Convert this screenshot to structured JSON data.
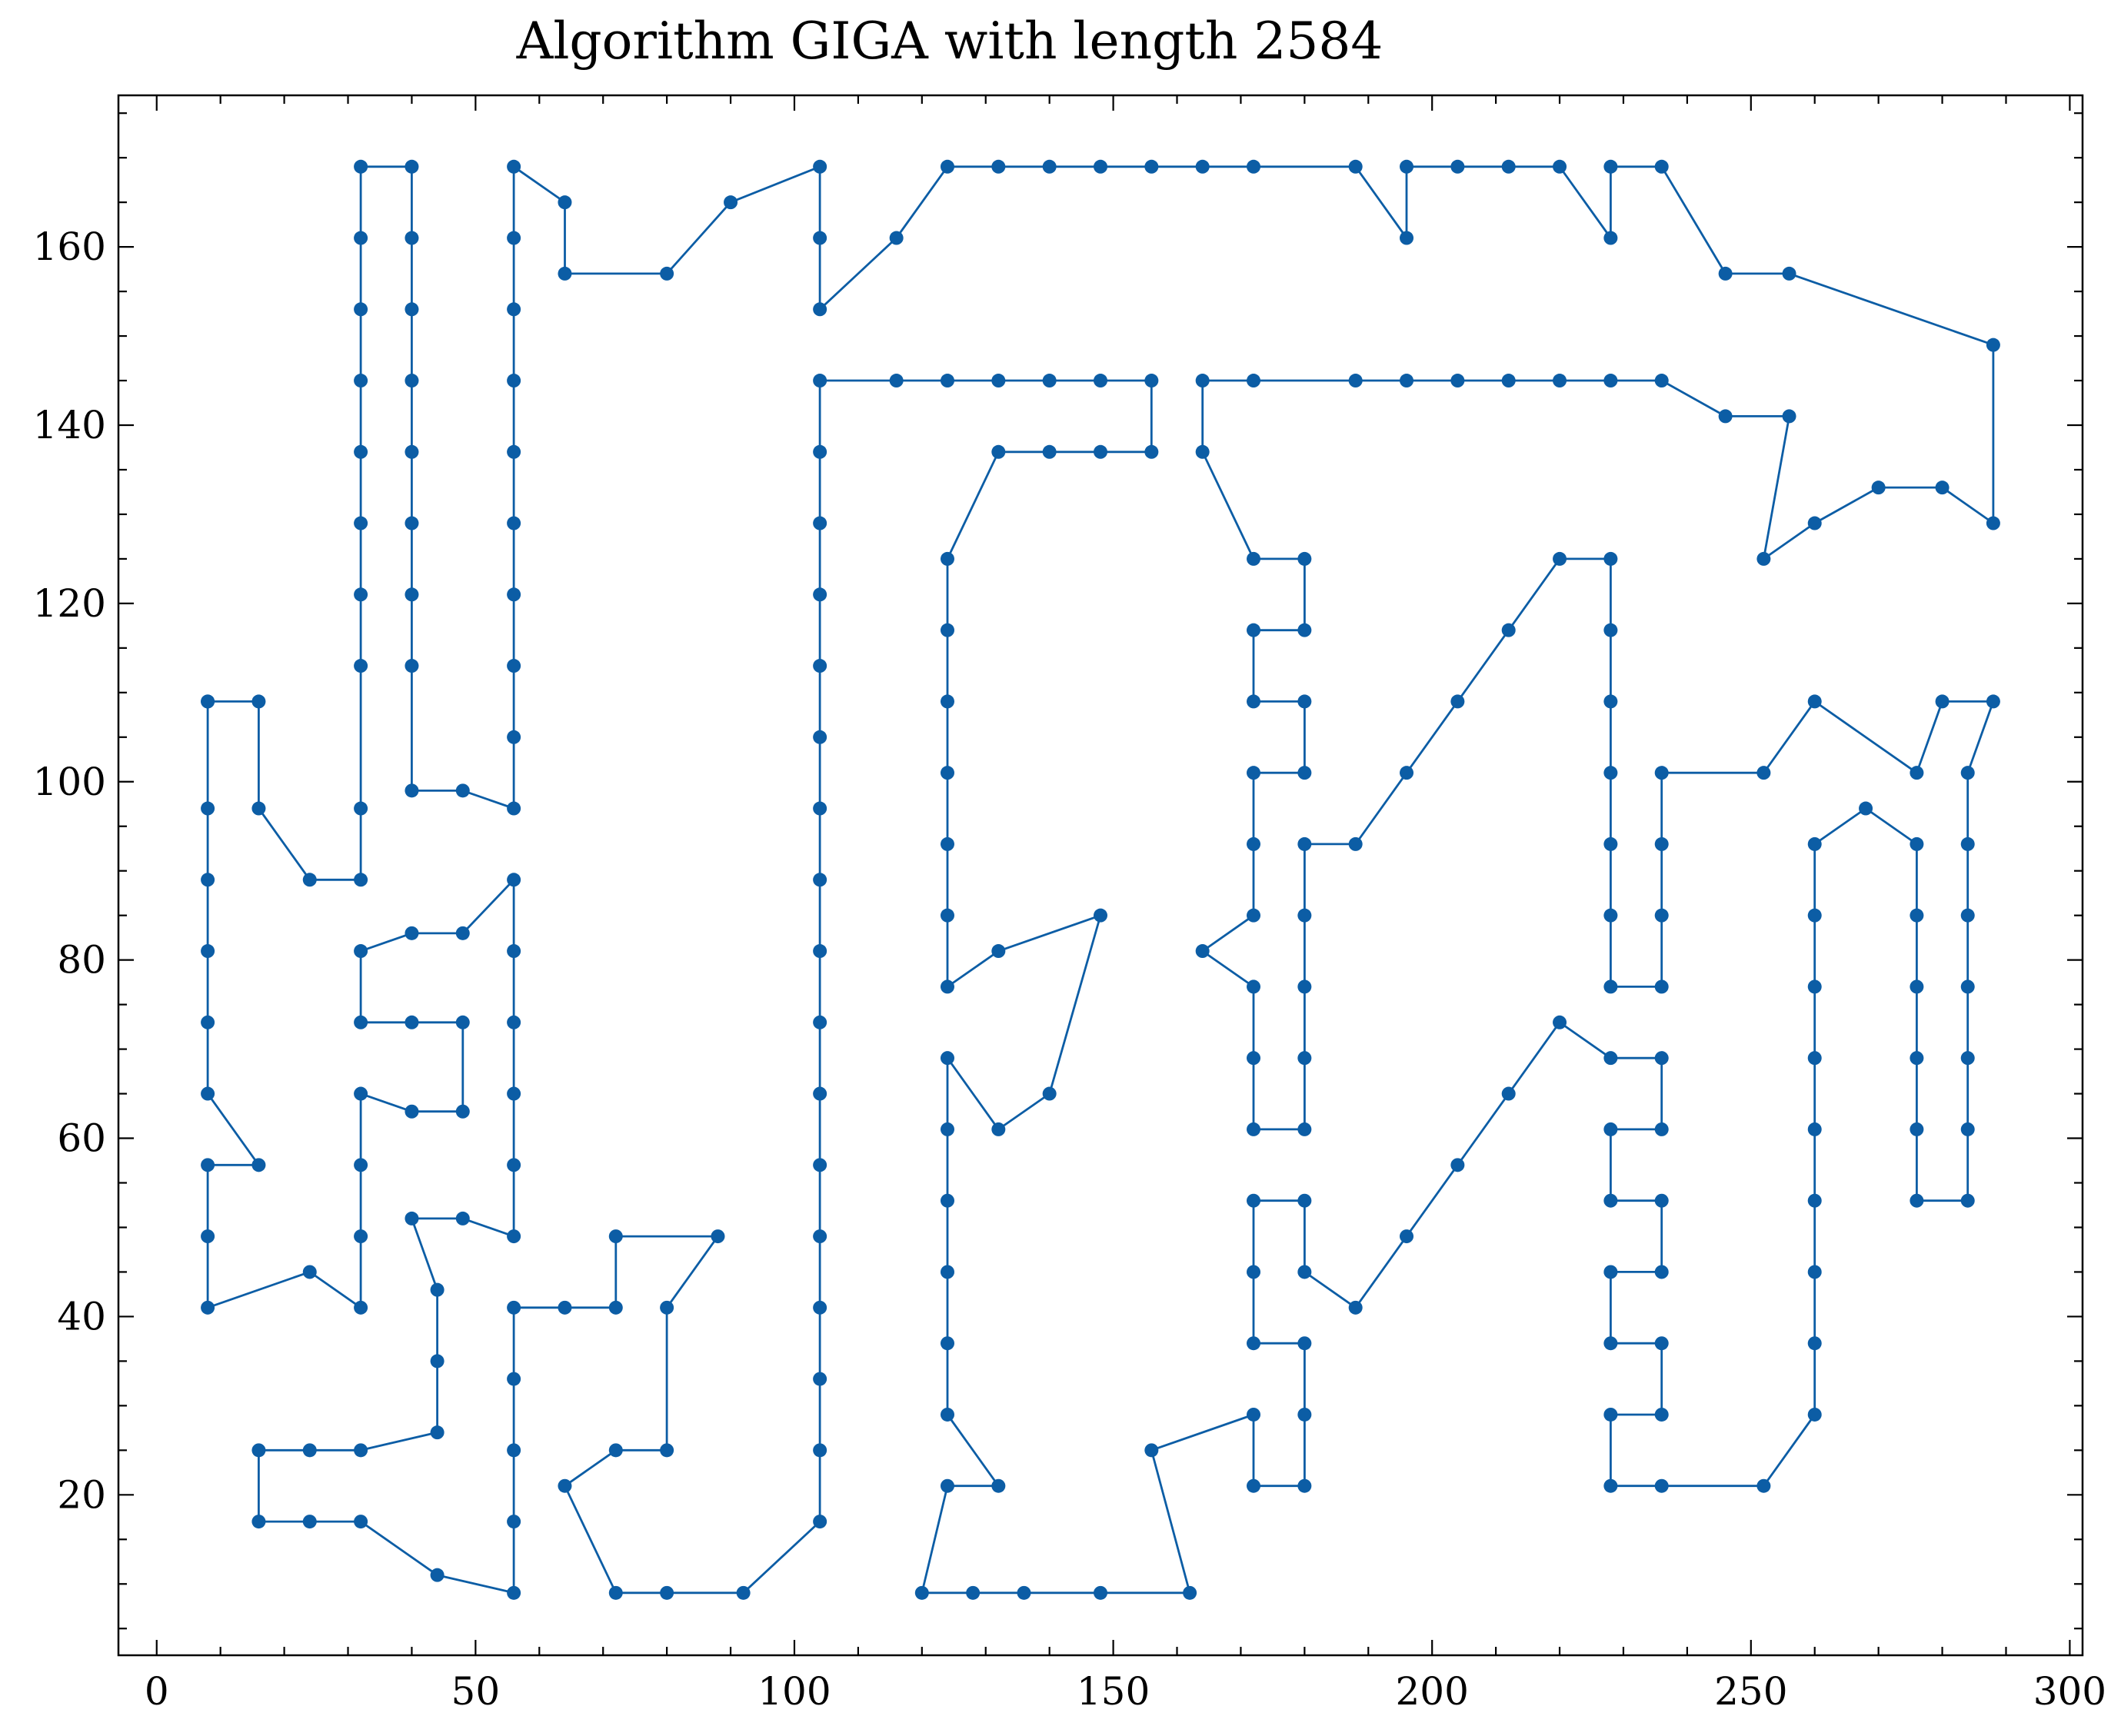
{
  "chart_data": {
    "type": "line",
    "title": "Algorithm GIGA with length 2584",
    "xlabel": "",
    "ylabel": "",
    "xlim": [
      -6,
      302
    ],
    "ylim": [
      2,
      177
    ],
    "xticks": [
      0,
      50,
      100,
      150,
      200,
      250,
      300
    ],
    "yticks": [
      20,
      40,
      60,
      80,
      100,
      120,
      140,
      160
    ],
    "xminor_step": 10,
    "yminor_step": 5,
    "grid": false,
    "legend": "none",
    "series": [
      {
        "color": "#0c5da5",
        "marker": "circle",
        "points": [
          [
            8,
            109
          ],
          [
            16,
            109
          ],
          [
            16,
            97
          ],
          [
            24,
            89
          ],
          [
            32,
            89
          ],
          [
            32,
            97
          ],
          [
            32,
            113
          ],
          [
            32,
            121
          ],
          [
            32,
            129
          ],
          [
            32,
            137
          ],
          [
            32,
            145
          ],
          [
            32,
            153
          ],
          [
            32,
            161
          ],
          [
            32,
            169
          ],
          [
            40,
            169
          ],
          [
            40,
            161
          ],
          [
            40,
            153
          ],
          [
            40,
            145
          ],
          [
            40,
            137
          ],
          [
            40,
            129
          ],
          [
            40,
            121
          ],
          [
            40,
            113
          ],
          [
            40,
            99
          ],
          [
            48,
            99
          ],
          [
            56,
            97
          ],
          [
            56,
            105
          ],
          [
            56,
            113
          ],
          [
            56,
            121
          ],
          [
            56,
            129
          ],
          [
            56,
            137
          ],
          [
            56,
            145
          ],
          [
            56,
            153
          ],
          [
            56,
            161
          ],
          [
            56,
            169
          ],
          [
            64,
            165
          ],
          [
            64,
            157
          ],
          [
            80,
            157
          ],
          [
            90,
            165
          ],
          [
            104,
            169
          ],
          [
            104,
            161
          ],
          [
            104,
            153
          ],
          [
            116,
            161
          ],
          [
            124,
            169
          ],
          [
            132,
            169
          ],
          [
            140,
            169
          ],
          [
            148,
            169
          ],
          [
            156,
            169
          ],
          [
            164,
            169
          ],
          [
            172,
            169
          ],
          [
            188,
            169
          ],
          [
            196,
            161
          ],
          [
            196,
            169
          ],
          [
            204,
            169
          ],
          [
            212,
            169
          ],
          [
            220,
            169
          ],
          [
            228,
            161
          ],
          [
            228,
            169
          ],
          [
            236,
            169
          ],
          [
            246,
            157
          ],
          [
            256,
            157
          ],
          [
            288,
            149
          ],
          [
            288,
            129
          ],
          [
            280,
            133
          ],
          [
            270,
            133
          ],
          [
            260,
            129
          ],
          [
            252,
            125
          ],
          [
            256,
            141
          ],
          [
            246,
            141
          ],
          [
            236,
            145
          ],
          [
            228,
            145
          ],
          [
            220,
            145
          ],
          [
            212,
            145
          ],
          [
            204,
            145
          ],
          [
            196,
            145
          ],
          [
            188,
            145
          ],
          [
            172,
            145
          ],
          [
            164,
            145
          ],
          [
            164,
            137
          ],
          [
            172,
            125
          ],
          [
            180,
            125
          ],
          [
            180,
            117
          ],
          [
            172,
            117
          ],
          [
            172,
            109
          ],
          [
            180,
            109
          ],
          [
            180,
            101
          ],
          [
            172,
            101
          ],
          [
            172,
            93
          ],
          [
            172,
            85
          ],
          [
            164,
            81
          ],
          [
            172,
            77
          ],
          [
            172,
            69
          ],
          [
            172,
            61
          ],
          [
            180,
            61
          ],
          [
            180,
            69
          ],
          [
            180,
            77
          ],
          [
            180,
            85
          ],
          [
            180,
            93
          ],
          [
            188,
            93
          ],
          [
            196,
            101
          ],
          [
            204,
            109
          ],
          [
            212,
            117
          ],
          [
            220,
            125
          ],
          [
            228,
            125
          ],
          [
            228,
            117
          ],
          [
            228,
            109
          ],
          [
            228,
            101
          ],
          [
            228,
            93
          ],
          [
            228,
            85
          ],
          [
            228,
            77
          ],
          [
            236,
            77
          ],
          [
            236,
            85
          ],
          [
            236,
            93
          ],
          [
            236,
            101
          ],
          [
            252,
            101
          ],
          [
            260,
            109
          ],
          [
            276,
            101
          ],
          [
            280,
            109
          ],
          [
            288,
            109
          ],
          [
            284,
            101
          ],
          [
            284,
            93
          ],
          [
            284,
            85
          ],
          [
            284,
            77
          ],
          [
            284,
            69
          ],
          [
            284,
            61
          ],
          [
            284,
            53
          ],
          [
            276,
            53
          ],
          [
            276,
            61
          ],
          [
            276,
            69
          ],
          [
            276,
            77
          ],
          [
            276,
            85
          ],
          [
            276,
            93
          ],
          [
            268,
            97
          ],
          [
            260,
            93
          ],
          [
            260,
            85
          ],
          [
            260,
            77
          ],
          [
            260,
            69
          ],
          [
            260,
            61
          ],
          [
            260,
            53
          ],
          [
            260,
            45
          ],
          [
            260,
            37
          ],
          [
            260,
            29
          ],
          [
            252,
            21
          ],
          [
            236,
            21
          ],
          [
            228,
            21
          ],
          [
            228,
            29
          ],
          [
            236,
            29
          ],
          [
            236,
            37
          ],
          [
            228,
            37
          ],
          [
            228,
            45
          ],
          [
            236,
            45
          ],
          [
            236,
            53
          ],
          [
            228,
            53
          ],
          [
            228,
            61
          ],
          [
            236,
            61
          ],
          [
            236,
            69
          ],
          [
            228,
            69
          ],
          [
            220,
            73
          ],
          [
            212,
            65
          ],
          [
            204,
            57
          ],
          [
            196,
            49
          ],
          [
            188,
            41
          ],
          [
            180,
            45
          ],
          [
            180,
            53
          ],
          [
            172,
            53
          ],
          [
            172,
            45
          ],
          [
            172,
            37
          ],
          [
            180,
            37
          ],
          [
            180,
            29
          ],
          [
            180,
            21
          ],
          [
            172,
            21
          ],
          [
            172,
            29
          ],
          [
            156,
            25
          ],
          [
            162,
            9
          ],
          [
            148,
            9
          ],
          [
            136,
            9
          ],
          [
            128,
            9
          ],
          [
            120,
            9
          ],
          [
            124,
            21
          ],
          [
            132,
            21
          ],
          [
            124,
            29
          ],
          [
            124,
            37
          ],
          [
            124,
            45
          ],
          [
            124,
            53
          ],
          [
            124,
            61
          ],
          [
            124,
            69
          ],
          [
            132,
            61
          ],
          [
            140,
            65
          ],
          [
            148,
            85
          ],
          [
            132,
            81
          ],
          [
            124,
            77
          ],
          [
            124,
            85
          ],
          [
            124,
            93
          ],
          [
            124,
            101
          ],
          [
            124,
            109
          ],
          [
            124,
            117
          ],
          [
            124,
            125
          ],
          [
            132,
            137
          ],
          [
            140,
            137
          ],
          [
            148,
            137
          ],
          [
            156,
            137
          ],
          [
            156,
            145
          ],
          [
            148,
            145
          ],
          [
            140,
            145
          ],
          [
            132,
            145
          ],
          [
            124,
            145
          ],
          [
            116,
            145
          ],
          [
            104,
            145
          ],
          [
            104,
            137
          ],
          [
            104,
            129
          ],
          [
            104,
            121
          ],
          [
            104,
            113
          ],
          [
            104,
            105
          ],
          [
            104,
            97
          ],
          [
            104,
            89
          ],
          [
            104,
            81
          ],
          [
            104,
            73
          ],
          [
            104,
            65
          ],
          [
            104,
            57
          ],
          [
            104,
            49
          ],
          [
            104,
            41
          ],
          [
            104,
            33
          ],
          [
            104,
            25
          ],
          [
            104,
            17
          ],
          [
            92,
            9
          ],
          [
            80,
            9
          ],
          [
            72,
            9
          ],
          [
            64,
            21
          ],
          [
            72,
            25
          ],
          [
            80,
            25
          ],
          [
            80,
            41
          ],
          [
            88,
            49
          ],
          [
            72,
            49
          ],
          [
            72,
            41
          ],
          [
            64,
            41
          ],
          [
            56,
            41
          ],
          [
            56,
            33
          ],
          [
            56,
            25
          ],
          [
            56,
            17
          ],
          [
            56,
            9
          ],
          [
            44,
            11
          ],
          [
            32,
            17
          ],
          [
            24,
            17
          ],
          [
            16,
            17
          ],
          [
            16,
            25
          ],
          [
            24,
            25
          ],
          [
            32,
            25
          ],
          [
            44,
            27
          ],
          [
            44,
            35
          ],
          [
            44,
            43
          ],
          [
            40,
            51
          ],
          [
            48,
            51
          ],
          [
            56,
            49
          ],
          [
            56,
            57
          ],
          [
            56,
            65
          ],
          [
            56,
            73
          ],
          [
            56,
            81
          ],
          [
            56,
            89
          ],
          [
            48,
            83
          ],
          [
            40,
            83
          ],
          [
            32,
            81
          ],
          [
            32,
            73
          ],
          [
            40,
            73
          ],
          [
            48,
            73
          ],
          [
            48,
            63
          ],
          [
            40,
            63
          ],
          [
            32,
            65
          ],
          [
            32,
            57
          ],
          [
            32,
            49
          ],
          [
            32,
            41
          ],
          [
            24,
            45
          ],
          [
            8,
            41
          ],
          [
            8,
            49
          ],
          [
            8,
            57
          ],
          [
            16,
            57
          ],
          [
            8,
            65
          ],
          [
            8,
            73
          ],
          [
            8,
            81
          ],
          [
            8,
            89
          ],
          [
            8,
            97
          ],
          [
            8,
            109
          ]
        ]
      }
    ]
  }
}
